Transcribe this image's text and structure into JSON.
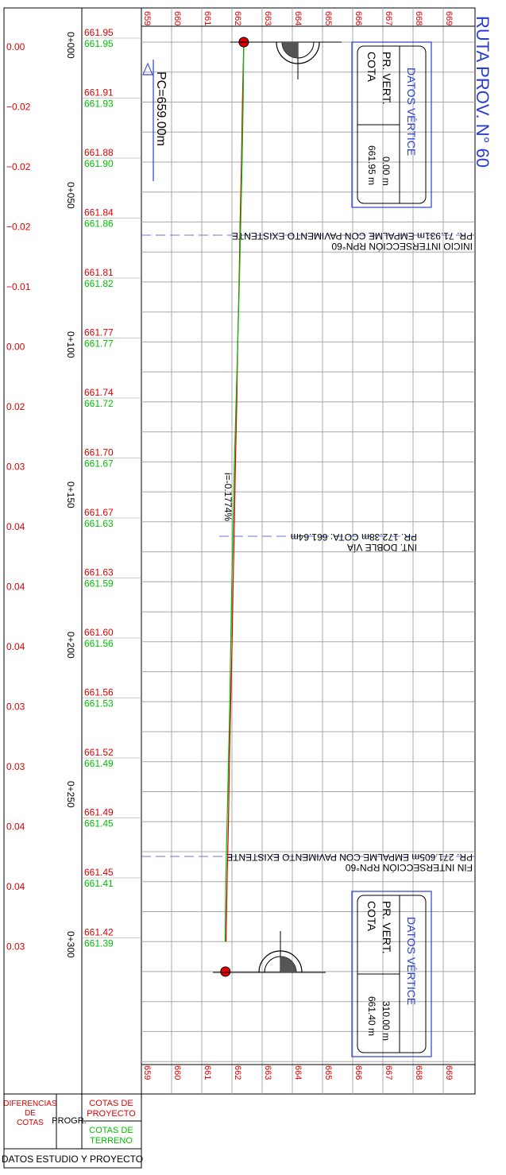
{
  "title": "RUTA PROV. N° 60",
  "colors": {
    "project": "#e00000",
    "terrain": "#00c000",
    "grid": "#a8a8a8",
    "annotation": "#2a3fd0",
    "black": "#000000"
  },
  "axis": {
    "elevation_ticks": [
      "659",
      "660",
      "661",
      "662",
      "663",
      "664",
      "665",
      "666",
      "667",
      "668",
      "669"
    ]
  },
  "stations": [
    "0+000",
    "0+050",
    "0+100",
    "0+150",
    "0+200",
    "0+250",
    "0+300"
  ],
  "rows": [
    {
      "project": "661.95",
      "terrain": "661.95",
      "diff": "0.00"
    },
    {
      "project": "661.91",
      "terrain": "661.93",
      "diff": "−0.02"
    },
    {
      "project": "661.88",
      "terrain": "661.90",
      "diff": "−0.02"
    },
    {
      "project": "661.84",
      "terrain": "661.86",
      "diff": "−0.02"
    },
    {
      "project": "661.81",
      "terrain": "661.82",
      "diff": "−0.01"
    },
    {
      "project": "661.77",
      "terrain": "661.77",
      "diff": "0.00"
    },
    {
      "project": "661.74",
      "terrain": "661.72",
      "diff": "0.02"
    },
    {
      "project": "661.70",
      "terrain": "661.67",
      "diff": "0.03"
    },
    {
      "project": "661.67",
      "terrain": "661.63",
      "diff": "0.04"
    },
    {
      "project": "661.63",
      "terrain": "661.59",
      "diff": "0.04"
    },
    {
      "project": "661.60",
      "terrain": "661.56",
      "diff": "0.04"
    },
    {
      "project": "661.56",
      "terrain": "661.53",
      "diff": "0.03"
    },
    {
      "project": "661.52",
      "terrain": "661.49",
      "diff": "0.03"
    },
    {
      "project": "661.49",
      "terrain": "661.45",
      "diff": "0.04"
    },
    {
      "project": "661.45",
      "terrain": "661.41",
      "diff": "0.04"
    },
    {
      "project": "661.42",
      "terrain": "661.39",
      "diff": "0.03"
    }
  ],
  "reference_plane": "PC=659.00m",
  "grade_label": "i=-0.1774%",
  "vertices": [
    {
      "header": "DATOS VÉRTICE",
      "label1": "PR. VERT.",
      "label2": "COTA",
      "value1": "0.00 m",
      "value2": "661.95 m"
    },
    {
      "header": "DATOS VÉRTICE",
      "label1": "PR. VERT.",
      "label2": "COTA",
      "value1": "310.00 m",
      "value2": "661.40 m"
    }
  ],
  "annotations": [
    {
      "line1": "PR. 71.931m  EMPALME  CON  PAVIMENTO  EXISTENTE",
      "line2": "INICIO INTERSECCIÓN RPN°60"
    },
    {
      "line1": "PR. 172.38m COTA: 661.64m",
      "line2": "INT. DOBLE VÍA"
    },
    {
      "line1": "PR. 271.605m  EMPALME  CON  PAVIMENTO  EXISTENTE",
      "line2": "FIN INTERSECCIÓN RPN°60"
    }
  ],
  "legend": {
    "project_label": "COTAS DE PROYECTO",
    "project_l1": "COTAS DE",
    "project_l2": "PROYECTO",
    "terrain_label": "COTAS DE TERRENO",
    "terrain_l1": "COTAS DE",
    "terrain_l2": "TERRENO",
    "progr_label": "PROGR.",
    "diff_label": "DIFERENCIAS DE COTAS",
    "diff_l1": "DIFERENCIAS",
    "diff_l2": "DE",
    "diff_l3": "COTAS",
    "footer": "DATOS ESTUDIO Y PROYECTO"
  },
  "chart_data": {
    "type": "line",
    "title": "RUTA PROV. N° 60",
    "xlabel": "PROGR.",
    "ylabel": "",
    "x": [
      0,
      20,
      40,
      60,
      80,
      100,
      120,
      140,
      160,
      180,
      200,
      220,
      240,
      260,
      280,
      300
    ],
    "ylim": [
      659,
      669
    ],
    "series": [
      {
        "name": "COTAS DE PROYECTO",
        "values": [
          661.95,
          661.91,
          661.88,
          661.84,
          661.81,
          661.77,
          661.74,
          661.7,
          661.67,
          661.63,
          661.6,
          661.56,
          661.52,
          661.49,
          661.45,
          661.42
        ]
      },
      {
        "name": "COTAS DE TERRENO",
        "values": [
          661.95,
          661.93,
          661.9,
          661.86,
          661.82,
          661.77,
          661.72,
          661.67,
          661.63,
          661.59,
          661.56,
          661.53,
          661.49,
          661.45,
          661.41,
          661.39
        ]
      }
    ],
    "vertices": [
      [
        0,
        661.95
      ],
      [
        310,
        661.4
      ]
    ],
    "grade_percent": -0.1774,
    "grid": true
  }
}
